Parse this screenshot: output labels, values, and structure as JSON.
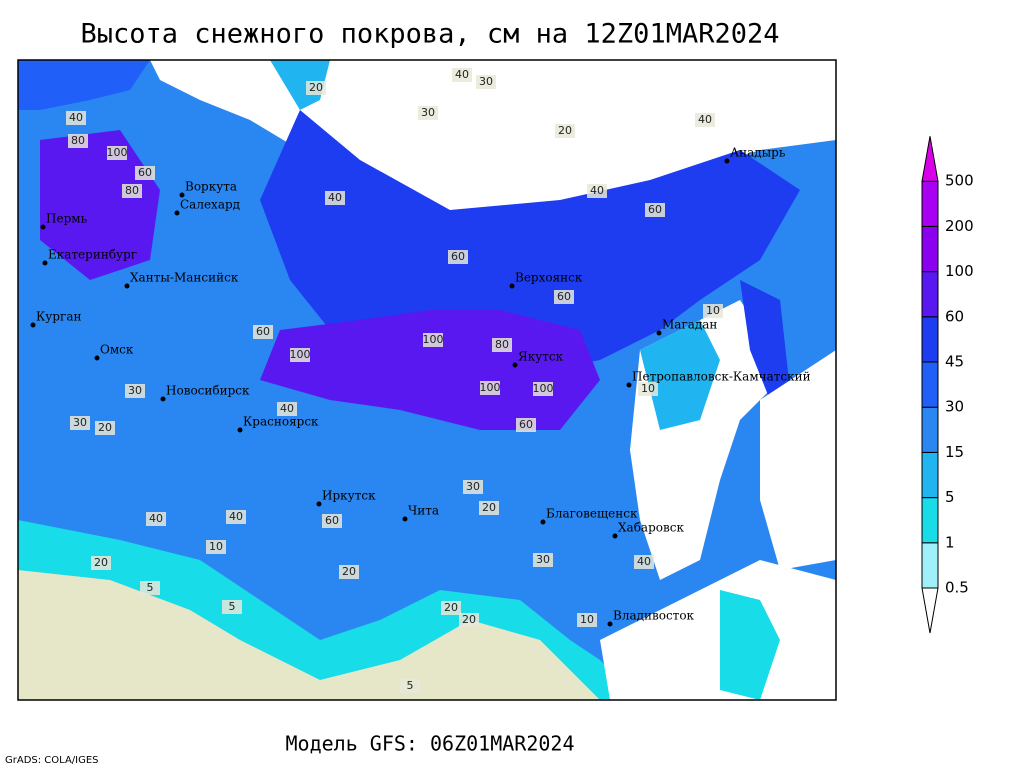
{
  "title": "Высота снежного покрова, см на 12Z01MAR2024",
  "subtitle": "Модель GFS: 06Z01MAR2024",
  "credit": "GrADS: COLA/IGES",
  "colorbar": {
    "levels": [
      0.5,
      1,
      5,
      15,
      30,
      45,
      60,
      100,
      200,
      500
    ],
    "colors": [
      "#ffffff",
      "#a0f0fa",
      "#18dce8",
      "#20b4f0",
      "#2a86f0",
      "#2060f8",
      "#1e3cf0",
      "#5a18f0",
      "#8c00f0",
      "#a800f0",
      "#d800e8"
    ]
  },
  "cities": [
    "Воркута",
    "Салехард",
    "Пермь",
    "Екатеринбург",
    "Ханты-Мансийск",
    "Курган",
    "Омск",
    "Новосибирск",
    "Красноярск",
    "Иркутск",
    "Чита",
    "Верхоянск",
    "Якутск",
    "Магадан",
    "Анадырь",
    "Петропавловск-Камчатский",
    "Благовещенск",
    "Хабаровск",
    "Владивосток"
  ],
  "contour_labels": [
    40,
    30,
    20,
    40,
    30,
    20,
    100,
    80,
    60,
    40,
    80,
    60,
    40,
    100,
    60,
    100,
    80,
    100,
    60,
    100,
    60,
    40,
    30,
    20,
    10,
    40,
    60,
    30,
    20,
    10,
    5,
    20,
    30,
    20,
    10,
    40,
    20,
    5,
    5,
    20,
    40,
    10,
    40,
    60,
    30
  ]
}
